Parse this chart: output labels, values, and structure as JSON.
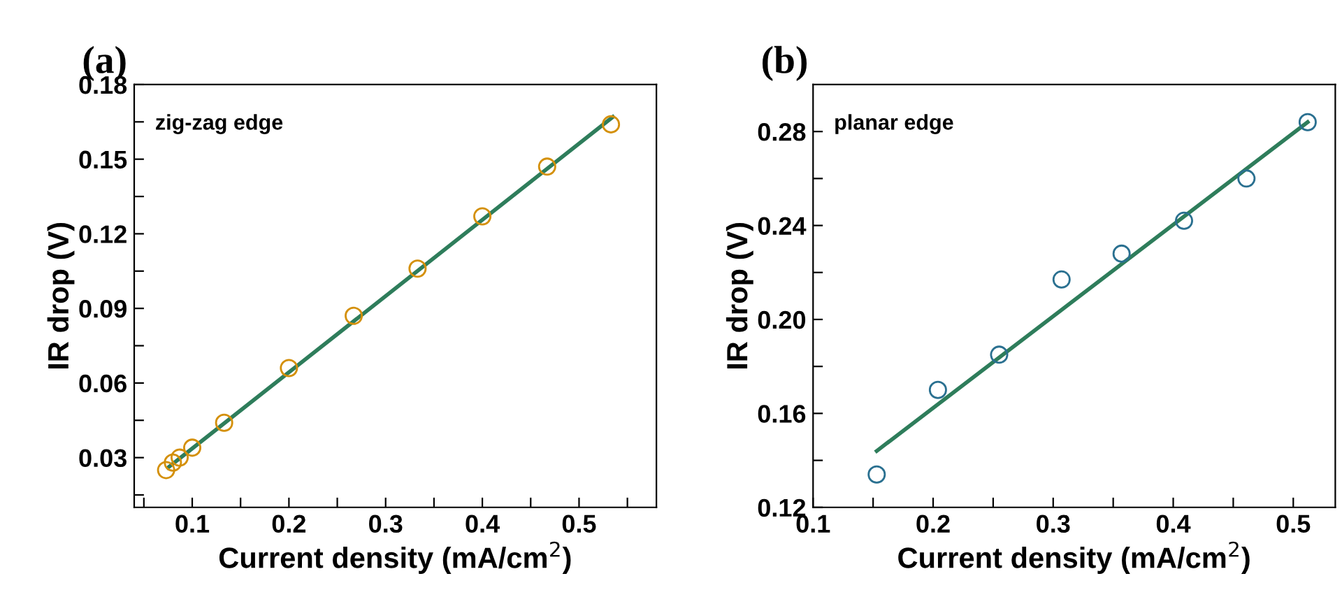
{
  "chart_data": [
    {
      "type": "scatter",
      "title": "(a)",
      "xlabel": "Current density (mA/cm$^{2}$)",
      "ylabel": "IR drop (V)",
      "annotations": [
        "zig-zag edge"
      ],
      "xlim": [
        0.04,
        0.58
      ],
      "ylim": [
        0.01,
        0.18
      ],
      "xticks": [
        {
          "value": 0.05,
          "label": null
        },
        0.1,
        {
          "value": 0.15,
          "label": null
        },
        0.2,
        {
          "value": 0.25,
          "label": null
        },
        0.3,
        {
          "value": 0.35,
          "label": null
        },
        0.4,
        {
          "value": 0.45,
          "label": null
        },
        0.5,
        {
          "value": 0.55,
          "label": null
        }
      ],
      "yticks": [
        {
          "value": 0.015,
          "label": null
        },
        0.03,
        {
          "value": 0.045,
          "label": null
        },
        0.06,
        {
          "value": 0.075,
          "label": null
        },
        0.09,
        {
          "value": 0.105,
          "label": null
        },
        0.12,
        {
          "value": 0.135,
          "label": null
        },
        0.15,
        {
          "value": 0.165,
          "label": null
        },
        0.18
      ],
      "grid": false,
      "series": [
        {
          "color": "#d4900a",
          "marker": "circle",
          "x": [
            0.073,
            0.08,
            0.087,
            0.1,
            0.133,
            0.2,
            0.267,
            0.333,
            0.4,
            0.467,
            0.533
          ],
          "values": [
            0.025,
            0.028,
            0.03,
            0.034,
            0.044,
            0.066,
            0.087,
            0.106,
            0.127,
            0.147,
            0.164
          ]
        },
        {
          "type": "line",
          "color": "#2e7d5b",
          "line_style": "solid",
          "x": [
            0.075,
            0.535
          ],
          "values": [
            0.026,
            0.167
          ]
        }
      ]
    },
    {
      "type": "scatter",
      "title": "(b)",
      "xlabel": "Current density (mA/cm$^{2}$)",
      "ylabel": "IR drop (V)",
      "annotations": [
        "planar edge"
      ],
      "xlim": [
        0.1,
        0.535
      ],
      "ylim": [
        0.12,
        0.3
      ],
      "xticks": [
        0.1,
        {
          "value": 0.15,
          "label": null
        },
        0.2,
        {
          "value": 0.25,
          "label": null
        },
        0.3,
        {
          "value": 0.35,
          "label": null
        },
        0.4,
        {
          "value": 0.45,
          "label": null
        },
        0.5
      ],
      "yticks": [
        0.12,
        {
          "value": 0.14,
          "label": null
        },
        0.16,
        {
          "value": 0.18,
          "label": null
        },
        {
          "value": 0.2,
          "label": "0.20"
        },
        {
          "value": 0.22,
          "label": null
        },
        0.24,
        {
          "value": 0.26,
          "label": null
        },
        0.28
      ],
      "grid": false,
      "series": [
        {
          "color": "#2a7090",
          "marker": "circle",
          "x": [
            0.153,
            0.204,
            0.255,
            0.307,
            0.357,
            0.409,
            0.461,
            0.512
          ],
          "values": [
            0.134,
            0.17,
            0.185,
            0.217,
            0.228,
            0.242,
            0.26,
            0.284
          ]
        },
        {
          "type": "line",
          "color": "#2e7d5b",
          "line_style": "solid",
          "x": [
            0.153,
            0.512
          ],
          "values": [
            0.144,
            0.284
          ]
        }
      ]
    }
  ]
}
